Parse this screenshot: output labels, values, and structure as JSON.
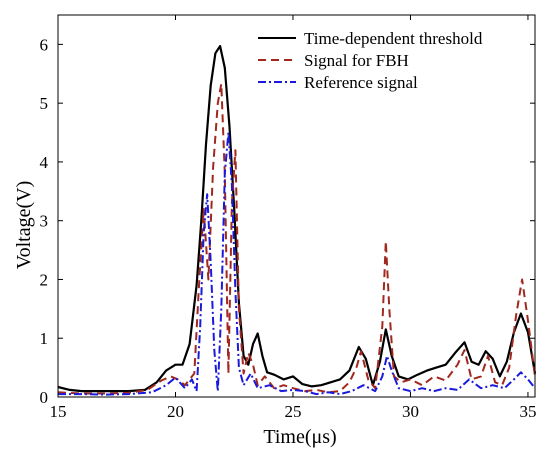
{
  "chart_data": {
    "type": "line",
    "title": "",
    "xlabel": "Time(μs)",
    "ylabel": "Voltage(V)",
    "xlim": [
      15,
      35.3
    ],
    "ylim": [
      0,
      6.5
    ],
    "xticks": [
      15,
      20,
      25,
      30,
      35
    ],
    "yticks": [
      0,
      1,
      2,
      3,
      4,
      5,
      6
    ],
    "grid": false,
    "legend_position": "top-right",
    "series": [
      {
        "name": "Time-dependent threshold",
        "color": "#000000",
        "style": "solid",
        "x": [
          15,
          15.5,
          16,
          17,
          18,
          18.7,
          19.2,
          19.6,
          20,
          20.3,
          20.6,
          20.9,
          21.1,
          21.3,
          21.5,
          21.7,
          21.9,
          22.1,
          22.3,
          22.5,
          22.7,
          22.9,
          23.1,
          23.3,
          23.5,
          23.7,
          23.9,
          24.2,
          24.6,
          25,
          25.4,
          25.8,
          26.2,
          26.6,
          27,
          27.4,
          27.8,
          28.1,
          28.4,
          28.7,
          28.95,
          29.2,
          29.5,
          29.9,
          30.3,
          30.7,
          31.1,
          31.5,
          31.9,
          32.3,
          32.6,
          32.9,
          33.2,
          33.5,
          33.8,
          34.1,
          34.4,
          34.7,
          35,
          35.3
        ],
        "y": [
          0.17,
          0.12,
          0.1,
          0.1,
          0.1,
          0.12,
          0.25,
          0.45,
          0.55,
          0.55,
          0.9,
          1.9,
          3.0,
          4.3,
          5.3,
          5.85,
          5.97,
          5.6,
          4.6,
          3.2,
          1.6,
          0.7,
          0.55,
          0.9,
          1.08,
          0.7,
          0.42,
          0.38,
          0.3,
          0.35,
          0.22,
          0.18,
          0.2,
          0.25,
          0.3,
          0.45,
          0.85,
          0.65,
          0.2,
          0.6,
          1.15,
          0.7,
          0.35,
          0.3,
          0.38,
          0.45,
          0.5,
          0.55,
          0.75,
          0.93,
          0.6,
          0.55,
          0.78,
          0.65,
          0.35,
          0.6,
          1.1,
          1.42,
          1.1,
          0.4
        ]
      },
      {
        "name": "Signal for FBH",
        "color": "#a0281e",
        "style": "dashed",
        "x": [
          15,
          16,
          17,
          18,
          18.8,
          19.4,
          19.8,
          20.1,
          20.4,
          20.8,
          21.0,
          21.2,
          21.4,
          21.6,
          21.8,
          21.95,
          22.1,
          22.25,
          22.4,
          22.55,
          22.7,
          22.9,
          23.1,
          23.3,
          23.5,
          23.8,
          24.2,
          24.6,
          25,
          25.5,
          26,
          26.5,
          27,
          27.4,
          27.7,
          27.9,
          28.2,
          28.5,
          28.8,
          28.95,
          29.1,
          29.3,
          29.6,
          30,
          30.5,
          31,
          31.5,
          32,
          32.3,
          32.6,
          33,
          33.3,
          33.6,
          33.9,
          34.2,
          34.5,
          34.75,
          35,
          35.3
        ],
        "y": [
          0.08,
          0.06,
          0.06,
          0.07,
          0.12,
          0.28,
          0.35,
          0.3,
          0.2,
          0.4,
          1.9,
          3.2,
          2.0,
          3.9,
          5.0,
          5.33,
          3.8,
          0.4,
          3.3,
          4.2,
          1.5,
          0.4,
          0.75,
          0.55,
          0.2,
          0.35,
          0.15,
          0.2,
          0.15,
          0.1,
          0.12,
          0.08,
          0.1,
          0.25,
          0.5,
          0.78,
          0.3,
          0.15,
          1.2,
          2.65,
          1.5,
          0.35,
          0.25,
          0.3,
          0.2,
          0.35,
          0.28,
          0.55,
          0.8,
          0.3,
          0.35,
          0.7,
          0.25,
          0.2,
          0.5,
          1.4,
          2.0,
          1.3,
          0.35
        ]
      },
      {
        "name": "Reference signal",
        "color": "#1a1adc",
        "style": "dashdot",
        "x": [
          15,
          16,
          17,
          18,
          19,
          19.6,
          20.0,
          20.4,
          20.7,
          20.9,
          21.05,
          21.2,
          21.35,
          21.5,
          21.65,
          21.8,
          21.95,
          22.1,
          22.25,
          22.4,
          22.55,
          22.7,
          22.9,
          23.2,
          23.5,
          24,
          24.5,
          25,
          25.5,
          26,
          26.5,
          27,
          27.5,
          28,
          28.5,
          28.8,
          29.0,
          29.2,
          29.5,
          30,
          30.5,
          31,
          31.5,
          32,
          32.5,
          33,
          33.5,
          34,
          34.4,
          34.7,
          35,
          35.3
        ],
        "y": [
          0.05,
          0.05,
          0.04,
          0.05,
          0.08,
          0.2,
          0.33,
          0.15,
          0.3,
          0.1,
          1.2,
          2.8,
          3.45,
          2.3,
          0.8,
          0.1,
          1.5,
          3.8,
          4.5,
          3.6,
          1.8,
          0.5,
          0.2,
          0.4,
          0.15,
          0.2,
          0.1,
          0.12,
          0.1,
          0.05,
          0.08,
          0.05,
          0.1,
          0.2,
          0.1,
          0.35,
          0.7,
          0.45,
          0.15,
          0.1,
          0.15,
          0.1,
          0.15,
          0.12,
          0.3,
          0.15,
          0.2,
          0.15,
          0.3,
          0.42,
          0.3,
          0.15
        ]
      }
    ]
  }
}
